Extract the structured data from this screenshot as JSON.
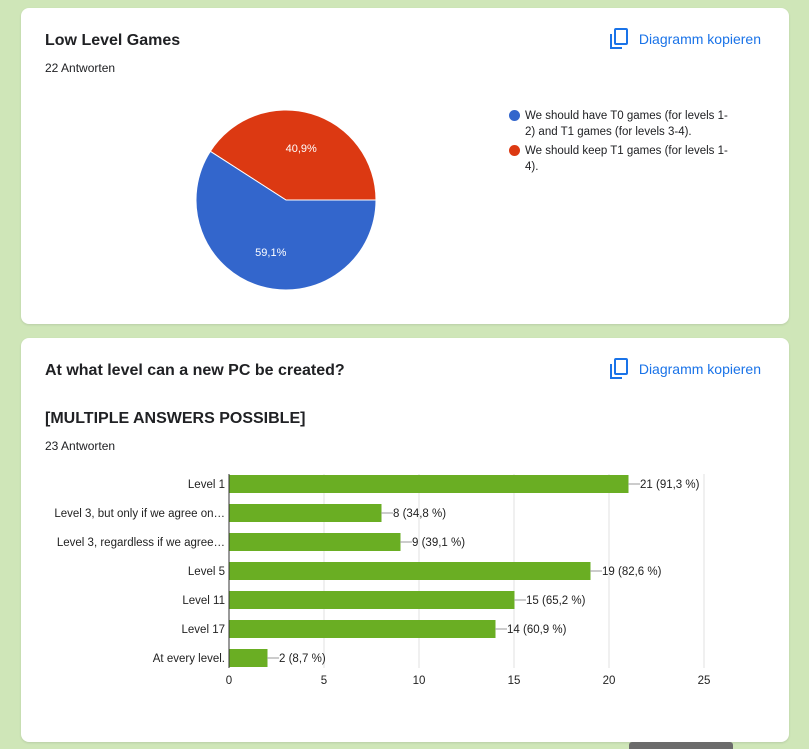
{
  "card1": {
    "title": "Low Level Games",
    "responses": "22 Antworten",
    "copy_label": "Diagramm kopieren",
    "chart_data": {
      "type": "pie",
      "slices": [
        {
          "label": "We should have T0 games (for levels 1-2) and T1 games (for levels 3-4).",
          "value": 59.1,
          "display": "59,1%",
          "color": "#3366cc"
        },
        {
          "label": "We should keep T1 games (for levels 1-4).",
          "value": 40.9,
          "display": "40,9%",
          "color": "#dc3912"
        }
      ],
      "legend_position": "right"
    },
    "legend_lines": [
      [
        "We should have T0 games (for levels 1-",
        "2) and T1 games (for levels 3-4)."
      ],
      [
        "We should keep T1 games (for levels 1-",
        "4)."
      ]
    ]
  },
  "card2": {
    "title": "At what level can a new PC be created?",
    "subtitle": "[MULTIPLE ANSWERS POSSIBLE]",
    "responses": "23 Antworten",
    "copy_label": "Diagramm kopieren",
    "chart_data": {
      "type": "bar",
      "orientation": "horizontal",
      "bar_color": "#6aae23",
      "categories": [
        "Level 1",
        "Level 3, but only if we agree on…",
        "Level 3, regardless if we agree…",
        "Level 5",
        "Level 11",
        "Level 17",
        "At every level."
      ],
      "values": [
        21,
        8,
        9,
        19,
        15,
        14,
        2
      ],
      "data_labels": [
        "21 (91,3 %)",
        "8 (34,8 %)",
        "9 (39,1 %)",
        "19 (82,6 %)",
        "15 (65,2 %)",
        "14 (60,9 %)",
        "2 (8,7 %)"
      ],
      "xlim": [
        0,
        25
      ],
      "xticks": [
        0,
        5,
        10,
        15,
        20,
        25
      ],
      "grid": true
    }
  }
}
